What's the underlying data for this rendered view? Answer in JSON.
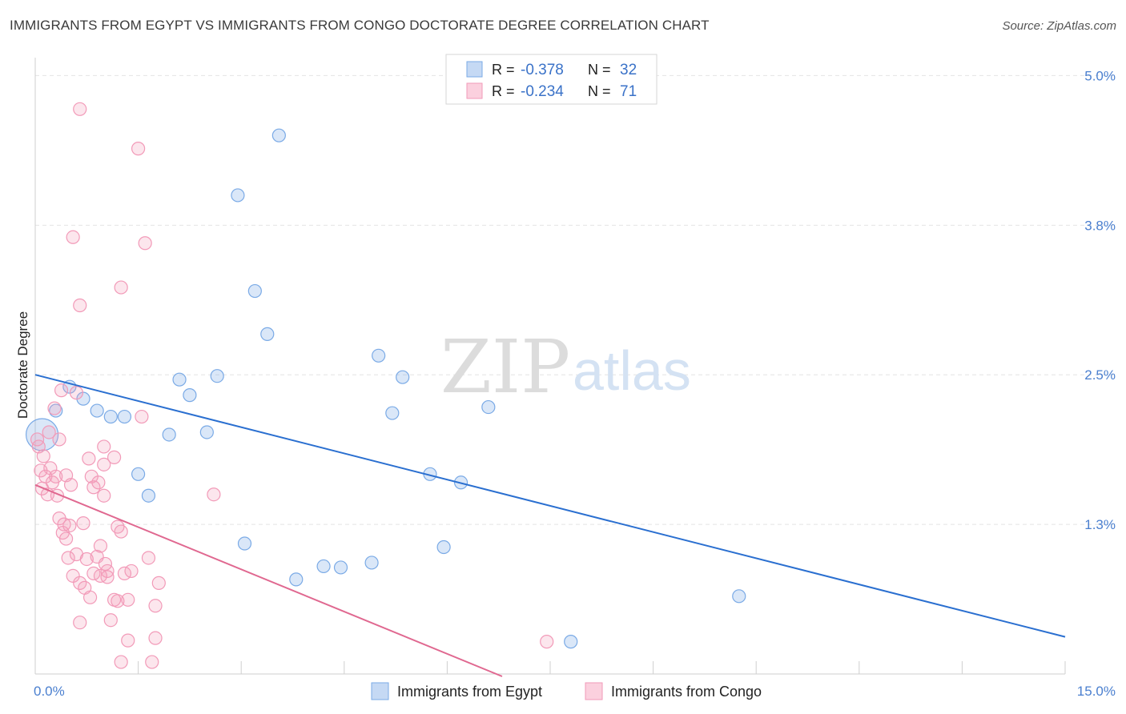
{
  "title": "IMMIGRANTS FROM EGYPT VS IMMIGRANTS FROM CONGO DOCTORATE DEGREE CORRELATION CHART",
  "source": "Source: ZipAtlas.com",
  "watermark": {
    "zip": "ZIP",
    "atlas": "atlas"
  },
  "colors": {
    "egypt": "#7aaae6",
    "egypt_line": "#2a6fd0",
    "congo": "#f29ab8",
    "congo_line": "#e06890",
    "tick": "#4a7fcf"
  },
  "legend": {
    "rows": [
      {
        "r_label": "R =",
        "r_value": "-0.378",
        "n_label": "N =",
        "n_value": "32"
      },
      {
        "r_label": "R =",
        "r_value": "-0.234",
        "n_label": "N =",
        "n_value": "71"
      }
    ]
  },
  "chart_data": {
    "type": "scatter",
    "title": "IMMIGRANTS FROM EGYPT VS IMMIGRANTS FROM CONGO DOCTORATE DEGREE CORRELATION CHART",
    "xlabel": "",
    "ylabel": "Doctorate Degree",
    "xlim": [
      0,
      15
    ],
    "ylim": [
      0,
      5.15
    ],
    "x_tick_labels": [
      {
        "value": 0,
        "label": "0.0%"
      },
      {
        "value": 15,
        "label": "15.0%"
      }
    ],
    "y_tick_labels": [
      {
        "value": 1.25,
        "label": "1.3%"
      },
      {
        "value": 2.5,
        "label": "2.5%"
      },
      {
        "value": 3.75,
        "label": "3.8%"
      },
      {
        "value": 5.0,
        "label": "5.0%"
      }
    ],
    "legend_position": "top-center",
    "series": [
      {
        "name": "Immigrants from Egypt",
        "r": -0.378,
        "n": 32,
        "trend": {
          "x": [
            0,
            15
          ],
          "y": [
            2.5,
            0.31
          ]
        },
        "points": [
          {
            "x": 0.1,
            "y": 2.0,
            "big": true
          },
          {
            "x": 0.3,
            "y": 2.2
          },
          {
            "x": 0.5,
            "y": 2.4
          },
          {
            "x": 0.7,
            "y": 2.3
          },
          {
            "x": 0.9,
            "y": 2.2
          },
          {
            "x": 1.1,
            "y": 2.15
          },
          {
            "x": 1.3,
            "y": 2.15
          },
          {
            "x": 1.5,
            "y": 1.67
          },
          {
            "x": 1.65,
            "y": 1.49
          },
          {
            "x": 1.95,
            "y": 2.0
          },
          {
            "x": 2.1,
            "y": 2.46
          },
          {
            "x": 2.25,
            "y": 2.33
          },
          {
            "x": 2.5,
            "y": 2.02
          },
          {
            "x": 2.65,
            "y": 2.49
          },
          {
            "x": 2.95,
            "y": 4.0
          },
          {
            "x": 3.05,
            "y": 1.09
          },
          {
            "x": 3.2,
            "y": 3.2
          },
          {
            "x": 3.38,
            "y": 2.84
          },
          {
            "x": 3.55,
            "y": 4.5
          },
          {
            "x": 3.8,
            "y": 0.79
          },
          {
            "x": 4.2,
            "y": 0.9
          },
          {
            "x": 4.45,
            "y": 0.89
          },
          {
            "x": 4.9,
            "y": 0.93
          },
          {
            "x": 5.0,
            "y": 2.66
          },
          {
            "x": 5.2,
            "y": 2.18
          },
          {
            "x": 5.35,
            "y": 2.48
          },
          {
            "x": 5.75,
            "y": 1.67
          },
          {
            "x": 5.95,
            "y": 1.06
          },
          {
            "x": 6.2,
            "y": 1.6
          },
          {
            "x": 6.6,
            "y": 2.23
          },
          {
            "x": 7.8,
            "y": 0.27
          },
          {
            "x": 10.25,
            "y": 0.65
          }
        ]
      },
      {
        "name": "Immigrants from Congo",
        "r": -0.234,
        "n": 71,
        "trend": {
          "x": [
            0,
            6.8
          ],
          "y": [
            1.58,
            -0.02
          ]
        },
        "points": [
          {
            "x": 0.03,
            "y": 1.96
          },
          {
            "x": 0.05,
            "y": 1.9
          },
          {
            "x": 0.08,
            "y": 1.7
          },
          {
            "x": 0.1,
            "y": 1.55
          },
          {
            "x": 0.12,
            "y": 1.82
          },
          {
            "x": 0.15,
            "y": 1.65
          },
          {
            "x": 0.18,
            "y": 1.5
          },
          {
            "x": 0.2,
            "y": 2.02
          },
          {
            "x": 0.22,
            "y": 1.72
          },
          {
            "x": 0.25,
            "y": 1.6
          },
          {
            "x": 0.28,
            "y": 2.22
          },
          {
            "x": 0.3,
            "y": 1.65
          },
          {
            "x": 0.32,
            "y": 1.49
          },
          {
            "x": 0.35,
            "y": 1.96
          },
          {
            "x": 0.35,
            "y": 1.3
          },
          {
            "x": 0.38,
            "y": 2.37
          },
          {
            "x": 0.4,
            "y": 1.18
          },
          {
            "x": 0.42,
            "y": 1.25
          },
          {
            "x": 0.45,
            "y": 1.66
          },
          {
            "x": 0.45,
            "y": 1.13
          },
          {
            "x": 0.48,
            "y": 0.97
          },
          {
            "x": 0.5,
            "y": 1.24
          },
          {
            "x": 0.52,
            "y": 1.58
          },
          {
            "x": 0.55,
            "y": 3.65
          },
          {
            "x": 0.55,
            "y": 0.82
          },
          {
            "x": 0.6,
            "y": 2.35
          },
          {
            "x": 0.6,
            "y": 1.0
          },
          {
            "x": 0.65,
            "y": 4.72
          },
          {
            "x": 0.65,
            "y": 3.08
          },
          {
            "x": 0.65,
            "y": 0.76
          },
          {
            "x": 0.65,
            "y": 0.43
          },
          {
            "x": 0.7,
            "y": 1.26
          },
          {
            "x": 0.72,
            "y": 0.72
          },
          {
            "x": 0.75,
            "y": 0.96
          },
          {
            "x": 0.78,
            "y": 1.8
          },
          {
            "x": 0.8,
            "y": 0.64
          },
          {
            "x": 0.82,
            "y": 1.65
          },
          {
            "x": 0.85,
            "y": 1.56
          },
          {
            "x": 0.85,
            "y": 0.84
          },
          {
            "x": 0.9,
            "y": 0.98
          },
          {
            "x": 0.92,
            "y": 1.6
          },
          {
            "x": 0.95,
            "y": 1.07
          },
          {
            "x": 0.95,
            "y": 0.82
          },
          {
            "x": 1.0,
            "y": 1.49
          },
          {
            "x": 1.0,
            "y": 1.9
          },
          {
            "x": 1.0,
            "y": 1.75
          },
          {
            "x": 1.02,
            "y": 0.92
          },
          {
            "x": 1.05,
            "y": 0.86
          },
          {
            "x": 1.05,
            "y": 0.81
          },
          {
            "x": 1.1,
            "y": 0.45
          },
          {
            "x": 1.15,
            "y": 1.81
          },
          {
            "x": 1.15,
            "y": 0.62
          },
          {
            "x": 1.2,
            "y": 1.23
          },
          {
            "x": 1.2,
            "y": 0.61
          },
          {
            "x": 1.25,
            "y": 3.23
          },
          {
            "x": 1.25,
            "y": 1.19
          },
          {
            "x": 1.25,
            "y": 0.1
          },
          {
            "x": 1.3,
            "y": 0.84
          },
          {
            "x": 1.35,
            "y": 0.62
          },
          {
            "x": 1.35,
            "y": 0.28
          },
          {
            "x": 1.4,
            "y": 0.86
          },
          {
            "x": 1.5,
            "y": 4.39
          },
          {
            "x": 1.55,
            "y": 2.15
          },
          {
            "x": 1.6,
            "y": 3.6
          },
          {
            "x": 1.65,
            "y": 0.97
          },
          {
            "x": 1.7,
            "y": 0.1
          },
          {
            "x": 1.75,
            "y": 0.3
          },
          {
            "x": 1.75,
            "y": 0.57
          },
          {
            "x": 1.8,
            "y": 0.76
          },
          {
            "x": 2.6,
            "y": 1.5
          },
          {
            "x": 7.45,
            "y": 0.27
          }
        ]
      }
    ]
  }
}
